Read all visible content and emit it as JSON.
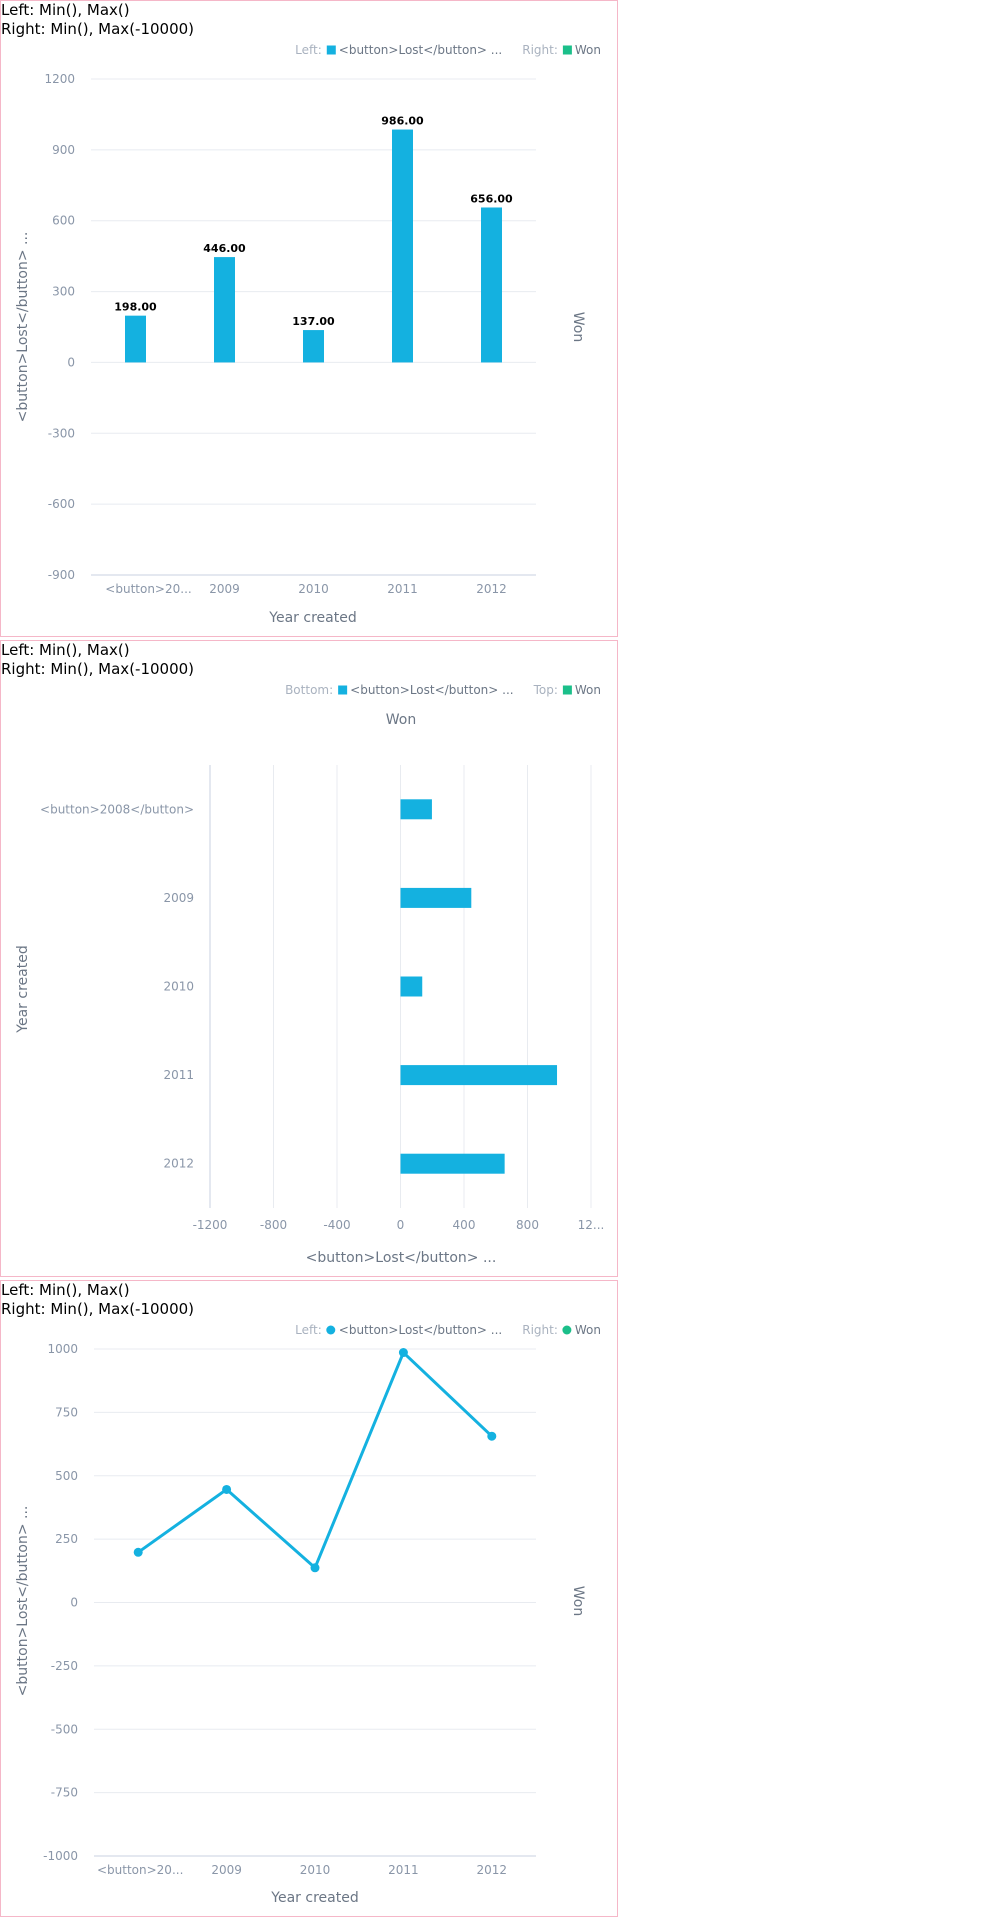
{
  "chart_data": [
    {
      "type": "bar",
      "header": [
        "Left: Min(), Max()",
        "Right: Min(), Max(-10000)"
      ],
      "legend": {
        "left_prefix": "Left:",
        "left_label": "<button>Lost</button> ...",
        "right_prefix": "Right:",
        "right_label": "Won",
        "left_color": "#14b1e0",
        "right_color": "#1bbf8a"
      },
      "categories": [
        "<button>20...",
        "2009",
        "2010",
        "2011",
        "2012"
      ],
      "series": [
        {
          "name": "<button>Lost</button> ...",
          "values": [
            198,
            446,
            137,
            986,
            656
          ],
          "color": "#14b1e0"
        }
      ],
      "data_labels": [
        "198.00",
        "446.00",
        "137.00",
        "986.00",
        "656.00"
      ],
      "ylim": [
        -900,
        1200
      ],
      "yticks": [
        1200,
        900,
        600,
        300,
        0,
        -300,
        -600,
        -900
      ],
      "xlabel": "Year created",
      "ylabel": "<button>Lost</button> ...",
      "y2label": "Won",
      "grid": true
    },
    {
      "type": "bar",
      "orientation": "horizontal",
      "header": [
        "Left: Min(), Max()",
        "Right: Min(), Max(-10000)"
      ],
      "legend": {
        "left_prefix": "Bottom:",
        "left_label": "<button>Lost</button> ...",
        "right_prefix": "Top:",
        "right_label": "Won",
        "left_color": "#14b1e0",
        "right_color": "#1bbf8a"
      },
      "categories": [
        "<button>2008</button>",
        "2009",
        "2010",
        "2011",
        "2012"
      ],
      "series": [
        {
          "name": "<button>Lost</button> ...",
          "values": [
            198,
            446,
            137,
            986,
            656
          ],
          "color": "#14b1e0"
        }
      ],
      "xlim": [
        -1200,
        1200
      ],
      "xticks": [
        "-1200",
        "-800",
        "-400",
        "0",
        "400",
        "800",
        "12..."
      ],
      "xlabel": "<button>Lost</button> ...",
      "ylabel": "Year created",
      "x2label": "Won",
      "grid": true
    },
    {
      "type": "line",
      "header": [
        "Left: Min(), Max()",
        "Right: Min(), Max(-10000)"
      ],
      "legend": {
        "left_prefix": "Left:",
        "left_label": "<button>Lost</button> ...",
        "right_prefix": "Right:",
        "right_label": "Won",
        "left_color": "#14b1e0",
        "right_color": "#1bbf8a"
      },
      "categories": [
        "<button>20...",
        "2009",
        "2010",
        "2011",
        "2012"
      ],
      "series": [
        {
          "name": "<button>Lost</button> ...",
          "values": [
            198,
            446,
            137,
            986,
            656
          ],
          "color": "#14b1e0"
        }
      ],
      "ylim": [
        -1000,
        1000
      ],
      "yticks": [
        1000,
        750,
        500,
        250,
        0,
        -250,
        -500,
        -750,
        -1000
      ],
      "xlabel": "Year created",
      "ylabel": "<button>Lost</button> ...",
      "y2label": "Won",
      "grid": true
    }
  ]
}
